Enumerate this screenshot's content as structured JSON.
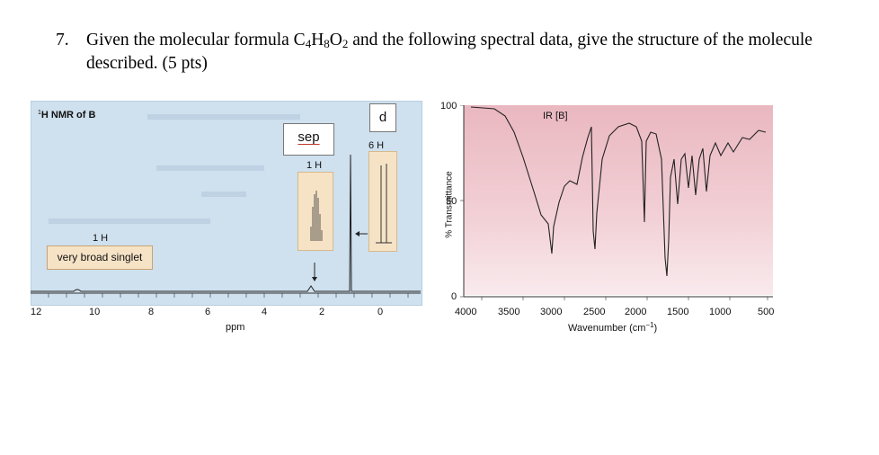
{
  "question": {
    "number": "7.",
    "text_before": "Given the molecular formula C",
    "c_sub": "4",
    "h_el": "H",
    "h_sub": "8",
    "o_el": "O",
    "o_sub": "2",
    "text_after": " and the following spectral data, give the structure of the molecule described.  (5 pts)"
  },
  "nmr": {
    "title_sup": "1",
    "title": "H NMR of B",
    "singlet_count": "1 H",
    "singlet_label": "very broad singlet",
    "sep_count": "1 H",
    "sep_annotation": "sep",
    "d_count": "6 H",
    "d_annotation": "d",
    "x_ticks": [
      "12",
      "10",
      "8",
      "6",
      "4",
      "2",
      "0"
    ],
    "x_label": "ppm"
  },
  "ir": {
    "title": "IR [B]",
    "y_label": "% Transmittance",
    "y_ticks": [
      "100",
      "50",
      "0"
    ],
    "x_ticks": [
      "4000",
      "3500",
      "3000",
      "2500",
      "2000",
      "1500",
      "1000",
      "500"
    ],
    "x_label": "Wavenumber (cm",
    "x_label_sup": "−1",
    "x_label_end": ")"
  },
  "colors": {
    "nmr_background": "#cfe0ee",
    "highlight_box": "#f6e3c6",
    "ir_background": "#eab7c0",
    "annotation_red": "#c0392b"
  }
}
